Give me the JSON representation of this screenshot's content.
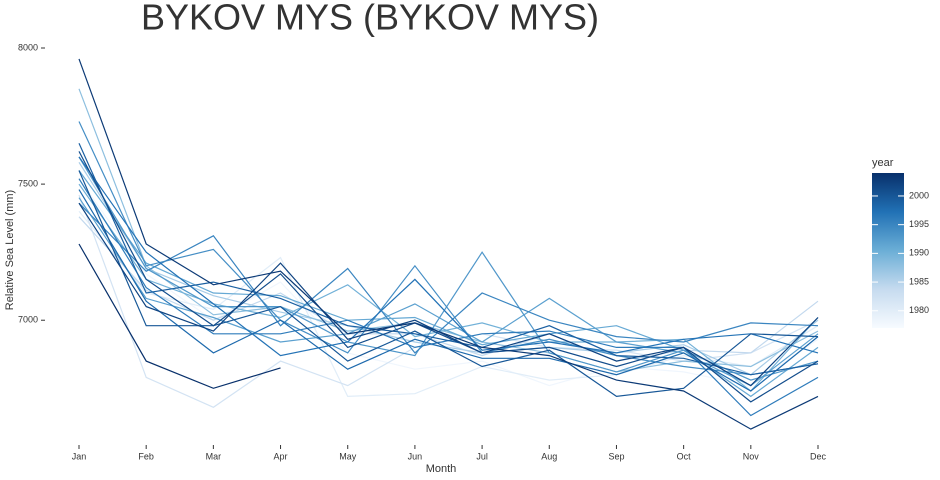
{
  "chart_data": {
    "type": "line",
    "title": "BYKOV MYS (BYKOV MYS)",
    "x_label": "Month",
    "y_label": "Relative Sea Level (mm)",
    "categories": [
      "Jan",
      "Feb",
      "Mar",
      "Apr",
      "May",
      "Jun",
      "Jul",
      "Aug",
      "Sep",
      "Oct",
      "Nov",
      "Dec"
    ],
    "ylim": [
      6560,
      8000
    ],
    "yticks": [
      7000,
      7500,
      8000
    ],
    "legend_title": "year",
    "colorbar": {
      "range": [
        1977,
        2004
      ],
      "ticks": [
        1980,
        1985,
        1990,
        1995,
        2000
      ],
      "colors": [
        "#f7fbff",
        "#c6dbef",
        "#6baed6",
        "#2171b5",
        "#08306b"
      ]
    },
    "series": [
      {
        "year": 1978,
        "values": [
          7520,
          7170,
          7000,
          7140,
          6880,
          6820,
          6850,
          6760,
          6830,
          6810,
          6760,
          6930
        ]
      },
      {
        "year": 1980,
        "values": [
          7400,
          7100,
          7040,
          7230,
          6720,
          6730,
          6830,
          6780,
          6800,
          6870,
          6830,
          6980
        ]
      },
      {
        "year": 1982,
        "values": [
          7460,
          6790,
          6680,
          6850,
          6760,
          6900,
          6950,
          6900,
          6890,
          6850,
          6880,
          7000
        ]
      },
      {
        "year": 1984,
        "values": [
          7380,
          7110,
          7000,
          7100,
          6950,
          6950,
          6870,
          6950,
          6850,
          6890,
          6880,
          7070
        ]
      },
      {
        "year": 1986,
        "values": [
          7580,
          7190,
          7090,
          7030,
          6980,
          6920,
          6880,
          6900,
          6880,
          6910,
          6800,
          7000
        ]
      },
      {
        "year": 1988,
        "values": [
          7850,
          7200,
          7020,
          7050,
          6960,
          6990,
          6920,
          6880,
          6810,
          6850,
          6830,
          6960
        ]
      },
      {
        "year": 1990,
        "values": [
          7500,
          7150,
          7060,
          7010,
          7130,
          6940,
          6990,
          6920,
          6920,
          6930,
          6740,
          7010
        ]
      },
      {
        "year": 1991,
        "values": [
          7550,
          7210,
          7100,
          7090,
          7000,
          7010,
          6910,
          6950,
          6980,
          6890,
          6720,
          6900
        ]
      },
      {
        "year": 1992,
        "values": [
          7450,
          7080,
          7010,
          6920,
          6950,
          7060,
          6920,
          7080,
          6920,
          6880,
          6760,
          6950
        ]
      },
      {
        "year": 1993,
        "values": [
          7600,
          7190,
          7050,
          7050,
          6920,
          6870,
          7250,
          6880,
          6810,
          6890,
          6780,
          6850
        ]
      },
      {
        "year": 1994,
        "values": [
          7730,
          7200,
          7260,
          7000,
          6880,
          7200,
          6880,
          6930,
          6870,
          6830,
          6800,
          6840
        ]
      },
      {
        "year": 1995,
        "values": [
          7430,
          7180,
          7310,
          6980,
          7190,
          6880,
          7100,
          7000,
          6940,
          6920,
          6990,
          6980
        ]
      },
      {
        "year": 1996,
        "values": [
          7520,
          7120,
          6950,
          6950,
          7000,
          6900,
          6950,
          6960,
          6900,
          6900,
          6650,
          6790
        ]
      },
      {
        "year": 1997,
        "values": [
          7600,
          7250,
          7060,
          6870,
          6920,
          7150,
          6890,
          6920,
          6880,
          6930,
          6950,
          6880
        ]
      },
      {
        "year": 1998,
        "values": [
          7480,
          7070,
          6880,
          7000,
          6820,
          6930,
          6860,
          6860,
          6800,
          6880,
          6740,
          6940
        ]
      },
      {
        "year": 1999,
        "values": [
          7650,
          7100,
          7140,
          7080,
          6980,
          6950,
          6900,
          6980,
          6870,
          6860,
          6800,
          6840
        ]
      },
      {
        "year": 2000,
        "values": [
          7550,
          6980,
          6980,
          7050,
          6850,
          6960,
          6830,
          6890,
          6720,
          6750,
          6950,
          6940
        ]
      },
      {
        "year": 2001,
        "values": [
          7620,
          7150,
          6980,
          7170,
          6900,
          6990,
          6880,
          6900,
          6830,
          6900,
          6700,
          6850
        ]
      },
      {
        "year": 2002,
        "values": [
          7430,
          7050,
          6960,
          7210,
          6930,
          7000,
          6880,
          6950,
          6850,
          6900,
          6760,
          7010
        ]
      },
      {
        "year": 2003,
        "values": [
          7960,
          7280,
          7130,
          7180,
          6950,
          6990,
          6900,
          6870,
          6780,
          6740,
          6600,
          6720
        ]
      },
      {
        "year": 2004,
        "values": [
          7280,
          6850,
          6750,
          6825,
          null,
          null,
          null,
          null,
          null,
          null,
          null,
          null
        ]
      }
    ]
  }
}
